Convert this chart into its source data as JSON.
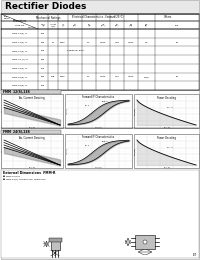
{
  "title": "Rectifier Diodes",
  "bg_color": "#f5f5f5",
  "title_bg": "#e0e0e0",
  "page_num": "5/7",
  "table_header_groups": [
    "Parameters",
    "Mechanical Ratings",
    "Electrical Characteristics - Forward(25°C)",
    "Others"
  ],
  "col_headers": [
    "Type No.",
    "Max\n(V)",
    "Av. out\nI(AV) current",
    "IF\n(A)",
    "trr\n(ns)",
    "VF\n(V)",
    "IR\n(uA)",
    "Ct\n(pF)",
    "Pd\n(W)",
    "Weight\n(g)",
    "Pkg"
  ],
  "rows": [
    [
      "FMM-12(S), R",
      "700",
      "",
      "",
      "",
      "",
      "",
      "",
      "",
      "",
      ""
    ],
    [
      "FMM-12(S), R",
      "400",
      "4B",
      "3000",
      "",
      "2.1",
      "0.030",
      "0.03",
      "0.040",
      "2.5",
      "35"
    ],
    [
      "FMM-20(S), R",
      "700",
      "",
      "",
      "additional date",
      "",
      "",
      "",
      "",
      "",
      ""
    ],
    [
      "FMM-21 (S), R",
      "400",
      "",
      "",
      "",
      "",
      "",
      "",
      "",
      "",
      ""
    ],
    [
      "FMM-24(S), R",
      "700",
      "",
      "",
      "",
      "",
      "",
      "",
      "",
      "",
      ""
    ],
    [
      "FMM-24(S), R",
      "400",
      "10B",
      "3000",
      "",
      "2.1",
      "0.030",
      "0.01",
      "0.030",
      "3.0/5",
      "35"
    ],
    [
      "FMM-24(S), R",
      "700",
      "",
      "",
      "",
      "",
      "",
      "",
      "",
      "",
      ""
    ]
  ],
  "section1_label": "FMM  12(S),24S",
  "section2_label": "FMM  24(S),24S",
  "graph_titles": [
    [
      "Av. Current Derating",
      "Forward IF Characteristics",
      "Power Derating"
    ],
    [
      "Av. Current Derating",
      "Forward IF Characteristics",
      "Power Derating"
    ]
  ],
  "dim_label": "External Dimensions  FMM-R",
  "dim_notes": [
    "FMM-12(S),R",
    "FMM-24(S), Dimensional tolerances"
  ]
}
